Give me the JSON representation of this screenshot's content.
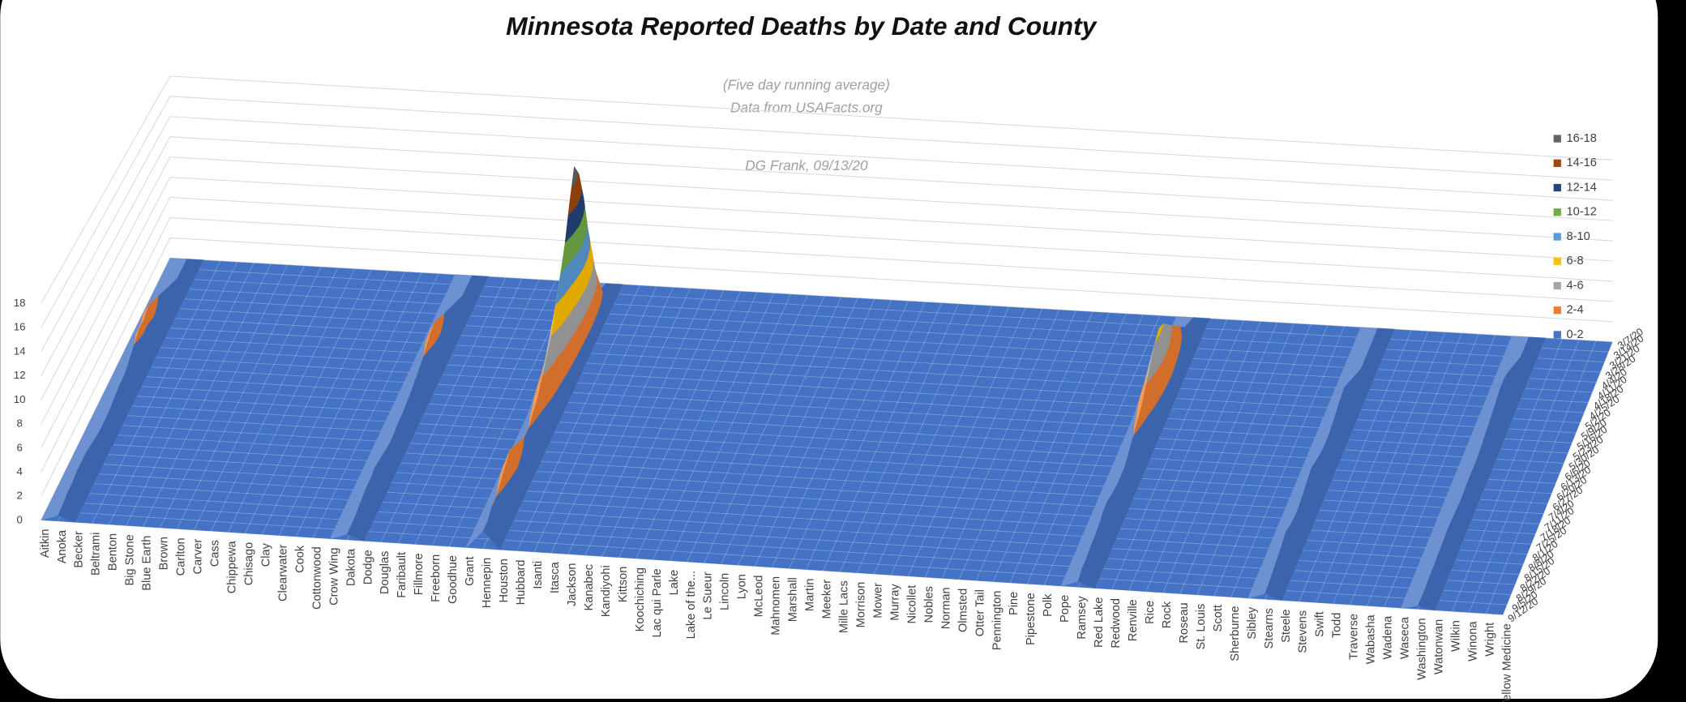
{
  "chart_data": {
    "type": "surface",
    "title": "Minnesota Reported Deaths by Date and County",
    "annotations": [
      "(Five day running average)",
      "Data from USAFacts.org",
      "DG Frank, 09/13/20"
    ],
    "categories": [
      "Aitkin",
      "Anoka",
      "Becker",
      "Beltrami",
      "Benton",
      "Big Stone",
      "Blue Earth",
      "Brown",
      "Carlton",
      "Carver",
      "Cass",
      "Chippewa",
      "Chisago",
      "Clay",
      "Clearwater",
      "Cook",
      "Cottonwood",
      "Crow Wing",
      "Dakota",
      "Dodge",
      "Douglas",
      "Faribault",
      "Fillmore",
      "Freeborn",
      "Goodhue",
      "Grant",
      "Hennepin",
      "Houston",
      "Hubbard",
      "Isanti",
      "Itasca",
      "Jackson",
      "Kanabec",
      "Kandiyohi",
      "Kittson",
      "Koochiching",
      "Lac qui Parle",
      "Lake",
      "Lake of the...",
      "Le Sueur",
      "Lincoln",
      "Lyon",
      "McLeod",
      "Mahnomen",
      "Marshall",
      "Martin",
      "Meeker",
      "Mille Lacs",
      "Morrison",
      "Mower",
      "Murray",
      "Nicollet",
      "Nobles",
      "Norman",
      "Olmsted",
      "Otter Tail",
      "Pennington",
      "Pine",
      "Pipestone",
      "Polk",
      "Pope",
      "Ramsey",
      "Red Lake",
      "Redwood",
      "Renville",
      "Rice",
      "Rock",
      "Roseau",
      "St. Louis",
      "Scott",
      "Sherburne",
      "Sibley",
      "Stearns",
      "Steele",
      "Stevens",
      "Swift",
      "Todd",
      "Traverse",
      "Wabasha",
      "Wadena",
      "Waseca",
      "Washington",
      "Watonwan",
      "Wilkin",
      "Winona",
      "Wright",
      "Yellow Medicine"
    ],
    "dates": [
      "3/7/20",
      "3/14/20",
      "3/21/20",
      "3/28/20",
      "4/4/20",
      "4/11/20",
      "4/18/20",
      "4/25/20",
      "5/2/20",
      "5/9/20",
      "5/16/20",
      "5/23/20",
      "5/30/20",
      "6/6/20",
      "6/13/20",
      "6/20/20",
      "6/27/20",
      "7/4/20",
      "7/11/20",
      "7/18/20",
      "7/25/20",
      "8/1/20",
      "8/8/20",
      "8/15/20",
      "8/22/20",
      "8/29/20",
      "9/5/20",
      "9/12/20"
    ],
    "ylim": [
      0,
      18
    ],
    "yticks": [
      0,
      2,
      4,
      6,
      8,
      10,
      12,
      14,
      16,
      18
    ],
    "bands": [
      {
        "name": "0-2",
        "color": "#4472c4"
      },
      {
        "name": "2-4",
        "color": "#ed7d31"
      },
      {
        "name": "4-6",
        "color": "#a5a5a5"
      },
      {
        "name": "6-8",
        "color": "#ffc000"
      },
      {
        "name": "8-10",
        "color": "#5b9bd5"
      },
      {
        "name": "10-12",
        "color": "#70ad47"
      },
      {
        "name": "12-14",
        "color": "#264478"
      },
      {
        "name": "14-16",
        "color": "#9e480e"
      },
      {
        "name": "16-18",
        "color": "#636363"
      }
    ],
    "series": [
      {
        "name": "Anoka",
        "values": [
          0,
          0,
          0,
          0.5,
          1,
          1.5,
          2,
          2.5,
          3,
          2.5,
          2.5,
          2,
          1.5,
          1,
          1,
          0.8,
          0.6,
          0.5,
          0.5,
          0.6,
          0.8,
          1,
          1,
          1,
          0.8,
          0.8,
          0.6,
          0.5
        ]
      },
      {
        "name": "Dakota",
        "values": [
          0,
          0,
          0,
          0.5,
          1,
          1.5,
          2,
          2.5,
          3,
          2.8,
          2.2,
          1.8,
          1.5,
          1.2,
          1,
          0.8,
          0.8,
          0.6,
          0.6,
          0.8,
          1,
          1.2,
          1,
          1,
          0.8,
          0.6,
          0.5,
          0.5
        ]
      },
      {
        "name": "Hennepin",
        "values": [
          0,
          0.5,
          2,
          5,
          9,
          13,
          16,
          17.5,
          15,
          12,
          10,
          8,
          6,
          5,
          4,
          3,
          2.5,
          2,
          2,
          2.5,
          3,
          3.5,
          3,
          2.5,
          2,
          2,
          1.5,
          1.5
        ]
      },
      {
        "name": "Ramsey",
        "values": [
          0,
          0.5,
          1,
          2,
          3,
          4,
          5,
          6,
          6.5,
          6,
          5,
          4,
          3,
          2.5,
          2,
          1.5,
          1,
          1,
          1,
          1.2,
          1.5,
          1.5,
          1.2,
          1,
          1,
          0.8,
          0.8,
          0.5
        ]
      },
      {
        "name": "Stearns",
        "values": [
          0,
          0,
          0,
          0,
          0,
          0.5,
          1,
          1.5,
          2,
          1.8,
          1.5,
          1.2,
          1,
          1,
          1.2,
          1.5,
          1.8,
          1.5,
          1.2,
          1,
          1,
          1.2,
          1.5,
          1.2,
          1,
          0.8,
          0.6,
          0.5
        ]
      },
      {
        "name": "Washington",
        "values": [
          0,
          0,
          0,
          0.5,
          1,
          1.5,
          1.8,
          1.8,
          1.5,
          1.2,
          1,
          0.8,
          0.6,
          0.5,
          0.5,
          0.5,
          0.4,
          0.4,
          0.5,
          0.6,
          0.6,
          0.5,
          0.5,
          0.4,
          0.4,
          0.3,
          0.3,
          0.3
        ]
      }
    ]
  }
}
